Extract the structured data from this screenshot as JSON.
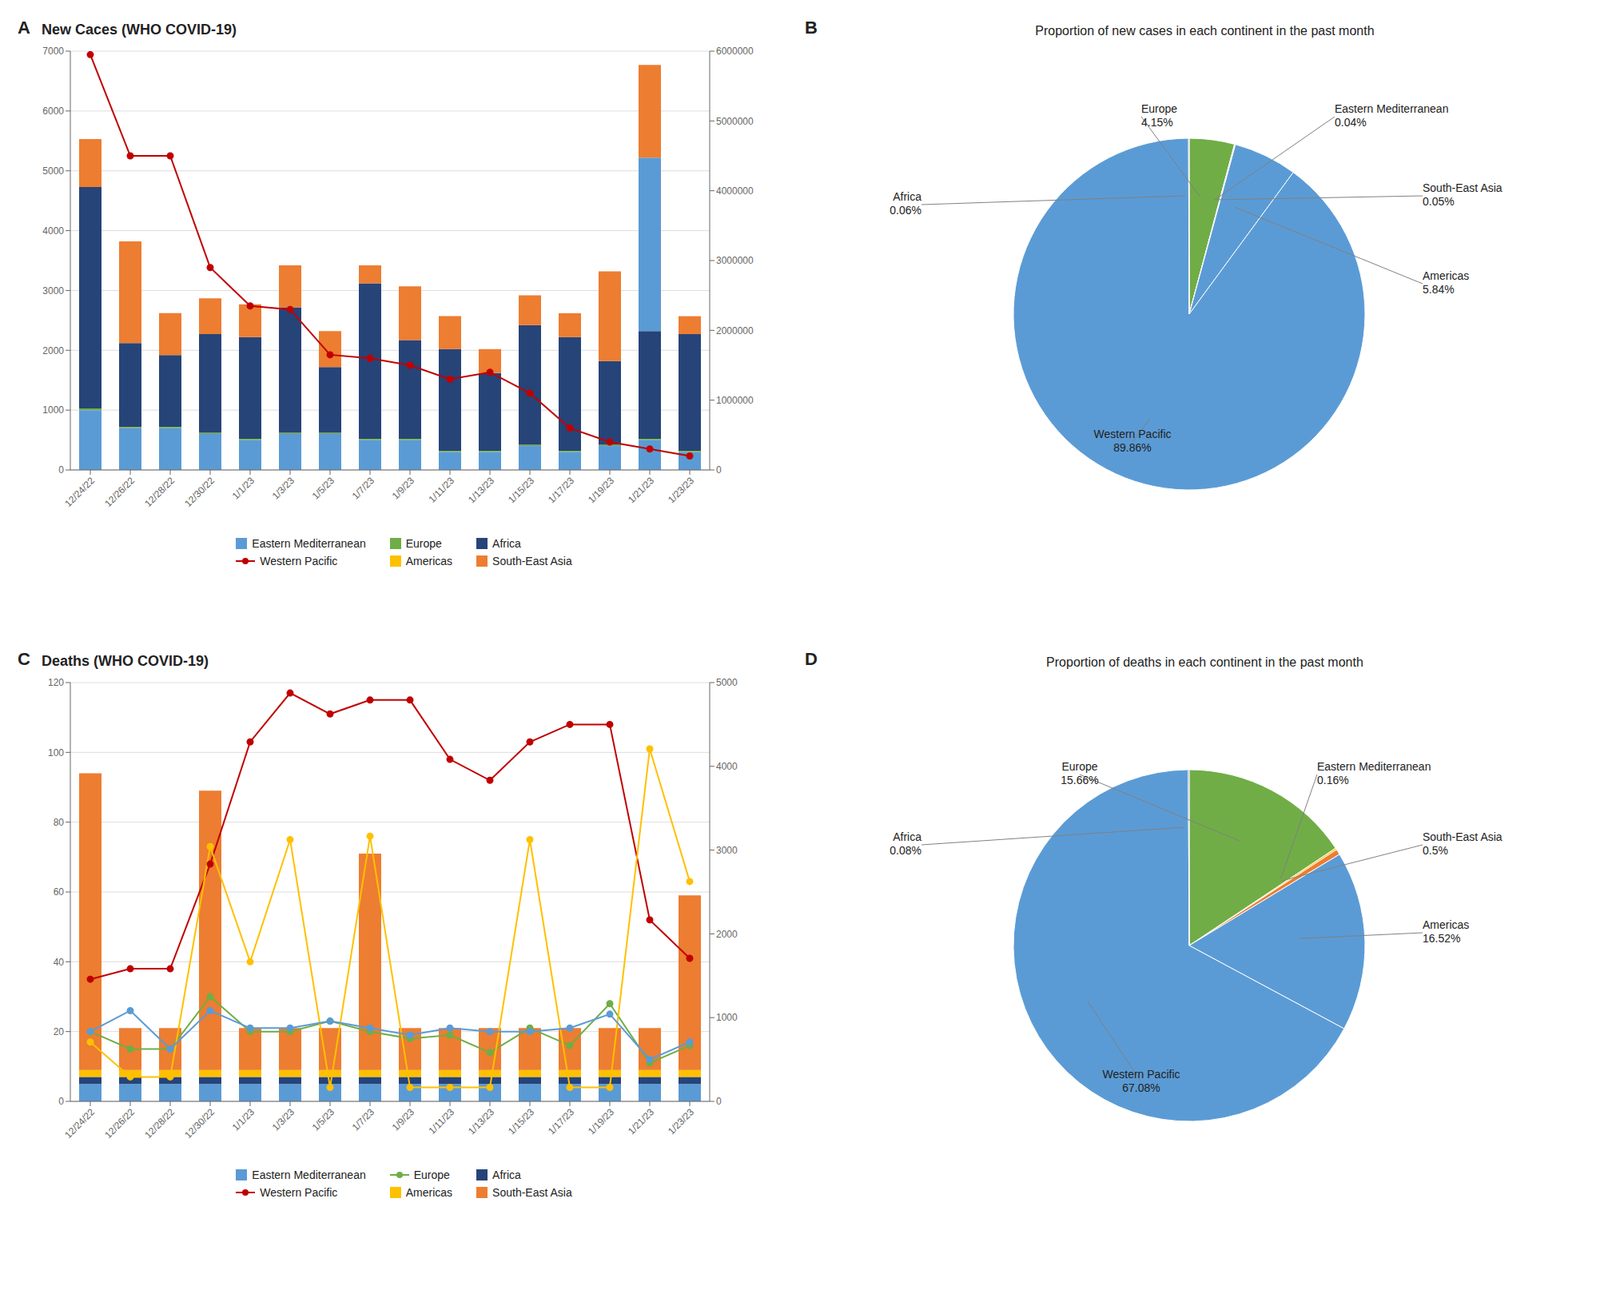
{
  "chart_data": [
    {
      "type": "bar",
      "title": "New Caces (WHO COVID-19)",
      "annotations": [
        "A"
      ],
      "categories": [
        "12/24/22",
        "12/26/22",
        "12/28/22",
        "12/30/22",
        "1/1/23",
        "1/3/23",
        "1/5/23",
        "1/7/23",
        "1/9/23",
        "1/11/23",
        "1/13/23",
        "1/15/23",
        "1/17/23",
        "1/19/23",
        "1/21/23",
        "1/23/23"
      ],
      "stacked": true,
      "grid": true,
      "legend": "bottom",
      "ylim": [
        0,
        7000
      ],
      "yticks": [
        0,
        1000,
        2000,
        3000,
        4000,
        5000,
        6000,
        7000
      ],
      "y2lim": [
        0,
        6000000
      ],
      "y2ticks": [
        0,
        1000000,
        2000000,
        3000000,
        4000000,
        5000000,
        6000000
      ],
      "series": [
        {
          "name": "Eastern Mediterranean",
          "type": "bar",
          "color": "#5B9BD5",
          "values": [
            1000,
            700,
            700,
            600,
            500,
            600,
            600,
            500,
            500,
            300,
            300,
            400,
            300,
            400,
            500,
            300
          ]
        },
        {
          "name": "Europe",
          "type": "bar",
          "color": "#70AD47",
          "values": [
            30,
            20,
            20,
            20,
            20,
            20,
            20,
            20,
            20,
            20,
            20,
            20,
            20,
            20,
            20,
            20
          ]
        },
        {
          "name": "Africa",
          "type": "bar",
          "color": "#264478",
          "values": [
            3700,
            1400,
            1200,
            1650,
            1700,
            2100,
            1100,
            2600,
            1650,
            1700,
            1300,
            2000,
            1900,
            1400,
            1800,
            1950
          ]
        },
        {
          "type": "bar",
          "color": "#5B9BD5",
          "values": [
            0,
            0,
            0,
            0,
            0,
            0,
            0,
            0,
            0,
            0,
            0,
            0,
            0,
            0,
            2900,
            0
          ]
        },
        {
          "name": "Western Pacific",
          "type": "line",
          "axis": "y2",
          "marker": "circle",
          "color": "#C00000",
          "values": [
            5950000,
            4500000,
            4500000,
            2900000,
            2350000,
            2300000,
            1650000,
            1600000,
            1500000,
            1300000,
            1400000,
            1100000,
            600000,
            400000,
            300000,
            200000
          ]
        },
        {
          "name": "Americas",
          "type": "bar",
          "color": "#FFC000",
          "values": [
            null,
            null,
            null,
            null,
            null,
            null,
            null,
            null,
            null,
            null,
            null,
            null,
            null,
            null,
            null,
            null
          ]
        },
        {
          "name": "South-East Asia",
          "type": "bar",
          "color": "#ED7D31",
          "values": [
            800,
            1700,
            700,
            600,
            550,
            700,
            600,
            300,
            900,
            550,
            400,
            500,
            400,
            1500,
            1550,
            300
          ]
        }
      ]
    },
    {
      "type": "pie",
      "title": "Proportion of new cases in each continent in the past month",
      "annotations": [
        "B"
      ],
      "categories": [
        "Europe",
        "Eastern Mediterranean",
        "South-East Asia",
        "Americas",
        "Western Pacific",
        "Africa"
      ],
      "values": [
        4.15,
        0.04,
        0.05,
        5.84,
        89.86,
        0.06
      ],
      "colors": [
        "#70AD47",
        "#FFC000",
        "#ED7D31",
        "#5B9BD5",
        "#5B9BD5",
        "#264478"
      ],
      "data_labels": true,
      "value_labels": [
        "4.15%",
        "0.04%",
        "0.05%",
        "5.84%",
        "89.86%",
        "0.06%"
      ]
    },
    {
      "type": "bar",
      "title": "Deaths (WHO COVID-19)",
      "annotations": [
        "C"
      ],
      "categories": [
        "12/24/22",
        "12/26/22",
        "12/28/22",
        "12/30/22",
        "1/1/23",
        "1/3/23",
        "1/5/23",
        "1/7/23",
        "1/9/23",
        "1/11/23",
        "1/13/23",
        "1/15/23",
        "1/17/23",
        "1/19/23",
        "1/21/23",
        "1/23/23"
      ],
      "stacked": true,
      "grid": true,
      "legend": "bottom",
      "ylim": [
        0,
        120
      ],
      "yticks": [
        0,
        20,
        40,
        60,
        80,
        100,
        120
      ],
      "y2lim": [
        0,
        5000
      ],
      "y2ticks": [
        0,
        1000,
        2000,
        3000,
        4000,
        5000
      ],
      "series": [
        {
          "name": "Eastern Mediterranean",
          "type": "bar",
          "color": "#5B9BD5",
          "values": [
            5,
            5,
            5,
            5,
            5,
            5,
            5,
            5,
            5,
            5,
            5,
            5,
            5,
            5,
            5,
            5
          ]
        },
        {
          "name": "Europe",
          "type": "line",
          "marker": "circle",
          "color": "#70AD47",
          "values": [
            20,
            15,
            15,
            30,
            20,
            20,
            23,
            20,
            18,
            19,
            14,
            21,
            16,
            28,
            11,
            16
          ]
        },
        {
          "name": "Africa",
          "type": "bar",
          "color": "#264478",
          "values": [
            2,
            2,
            2,
            2,
            2,
            2,
            2,
            2,
            2,
            2,
            2,
            2,
            2,
            2,
            2,
            2
          ]
        },
        {
          "name": "Western Pacific",
          "type": "line",
          "marker": "circle",
          "color": "#C00000",
          "values": [
            35,
            38,
            38,
            68,
            103,
            117,
            111,
            115,
            115,
            98,
            92,
            103,
            108,
            108,
            52,
            41
          ]
        },
        {
          "name": "Americas",
          "type": "bar",
          "color": "#FFC000",
          "values": [
            2,
            2,
            2,
            2,
            2,
            2,
            2,
            2,
            2,
            2,
            2,
            2,
            2,
            2,
            2,
            2
          ]
        },
        {
          "name": "South-East Asia",
          "type": "bar",
          "color": "#ED7D31",
          "values": [
            85,
            12,
            12,
            80,
            12,
            12,
            12,
            62,
            12,
            12,
            12,
            12,
            12,
            12,
            12,
            50
          ]
        },
        {
          "name": "Americas",
          "type": "line",
          "marker": "circle",
          "color": "#FFC000",
          "values": [
            17,
            7,
            7,
            73,
            40,
            75,
            4,
            76,
            4,
            4,
            4,
            75,
            4,
            4,
            101,
            63
          ]
        },
        {
          "name": "Eastern Mediterranean",
          "type": "line",
          "marker": "circle",
          "color": "#5B9BD5",
          "values": [
            20,
            26,
            15,
            26,
            21,
            21,
            23,
            21,
            19,
            21,
            20,
            20,
            21,
            25,
            12,
            17
          ]
        }
      ]
    },
    {
      "type": "pie",
      "title": "Proportion of deaths in each continent in the past month",
      "annotations": [
        "D"
      ],
      "categories": [
        "Europe",
        "Eastern Mediterranean",
        "South-East Asia",
        "Americas",
        "Western Pacific",
        "Africa"
      ],
      "values": [
        15.66,
        0.16,
        0.5,
        16.52,
        67.08,
        0.08
      ],
      "colors": [
        "#70AD47",
        "#FFC000",
        "#ED7D31",
        "#5B9BD5",
        "#5B9BD5",
        "#264478"
      ],
      "data_labels": true,
      "value_labels": [
        "15.66%",
        "0.16%",
        "0.5%",
        "16.52%",
        "67.08%",
        "0.08%"
      ]
    }
  ]
}
